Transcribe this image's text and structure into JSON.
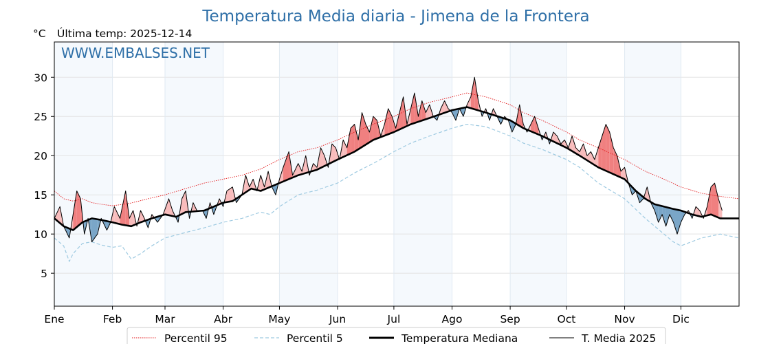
{
  "chart_data": {
    "type": "line",
    "title": "Temperatura Media diaria - Jimena de la Frontera",
    "unit_label": "°C",
    "subtitle": "Última temp: 2025-12-14",
    "watermark": "WWW.EMBALSES.NET",
    "ylim": [
      0.8,
      34.5
    ],
    "yticks": [
      5,
      10,
      15,
      20,
      25,
      30
    ],
    "xlim": [
      0,
      365
    ],
    "grid": true,
    "legend_position": "bottom",
    "months": [
      {
        "label": "Ene",
        "start": 0
      },
      {
        "label": "Feb",
        "start": 31
      },
      {
        "label": "Mar",
        "start": 59
      },
      {
        "label": "Abr",
        "start": 90
      },
      {
        "label": "May",
        "start": 120
      },
      {
        "label": "Jun",
        "start": 151
      },
      {
        "label": "Jul",
        "start": 181
      },
      {
        "label": "Ago",
        "start": 212
      },
      {
        "label": "Sep",
        "start": 243
      },
      {
        "label": "Oct",
        "start": 273
      },
      {
        "label": "Nov",
        "start": 304
      },
      {
        "label": "Dic",
        "start": 334
      }
    ],
    "shaded_months": [
      "Ene",
      "Mar",
      "May",
      "Jul",
      "Sep",
      "Nov"
    ],
    "series": [
      {
        "name": "Percentil 95",
        "color": "#e31a1c",
        "style": "dotted",
        "points": [
          [
            0,
            15.5
          ],
          [
            5,
            14.5
          ],
          [
            10,
            14.2
          ],
          [
            15,
            14.5
          ],
          [
            20,
            14.0
          ],
          [
            25,
            13.8
          ],
          [
            31,
            13.6
          ],
          [
            40,
            13.9
          ],
          [
            50,
            14.5
          ],
          [
            59,
            15.0
          ],
          [
            70,
            15.8
          ],
          [
            80,
            16.5
          ],
          [
            90,
            17.0
          ],
          [
            100,
            17.5
          ],
          [
            110,
            18.3
          ],
          [
            120,
            19.5
          ],
          [
            130,
            20.5
          ],
          [
            140,
            21.0
          ],
          [
            151,
            22.0
          ],
          [
            160,
            23.0
          ],
          [
            170,
            24.0
          ],
          [
            181,
            25.0
          ],
          [
            190,
            26.0
          ],
          [
            200,
            26.8
          ],
          [
            212,
            27.5
          ],
          [
            220,
            28.0
          ],
          [
            230,
            27.5
          ],
          [
            243,
            26.5
          ],
          [
            250,
            25.5
          ],
          [
            260,
            24.5
          ],
          [
            273,
            23.0
          ],
          [
            280,
            22.0
          ],
          [
            290,
            21.0
          ],
          [
            304,
            19.5
          ],
          [
            315,
            18.0
          ],
          [
            325,
            17.0
          ],
          [
            334,
            16.0
          ],
          [
            345,
            15.2
          ],
          [
            355,
            14.8
          ],
          [
            365,
            14.5
          ]
        ]
      },
      {
        "name": "Percentil 5",
        "color": "#9ecae1",
        "style": "dashed",
        "points": [
          [
            0,
            9.5
          ],
          [
            5,
            8.5
          ],
          [
            8,
            6.5
          ],
          [
            10,
            7.5
          ],
          [
            15,
            8.8
          ],
          [
            20,
            9.0
          ],
          [
            25,
            8.6
          ],
          [
            31,
            8.3
          ],
          [
            36,
            8.5
          ],
          [
            41,
            6.8
          ],
          [
            46,
            7.5
          ],
          [
            52,
            8.5
          ],
          [
            59,
            9.5
          ],
          [
            70,
            10.2
          ],
          [
            80,
            10.8
          ],
          [
            90,
            11.5
          ],
          [
            100,
            12.0
          ],
          [
            110,
            12.8
          ],
          [
            115,
            12.5
          ],
          [
            120,
            13.5
          ],
          [
            130,
            15.0
          ],
          [
            140,
            15.6
          ],
          [
            151,
            16.5
          ],
          [
            160,
            17.8
          ],
          [
            170,
            19.0
          ],
          [
            181,
            20.5
          ],
          [
            190,
            21.6
          ],
          [
            200,
            22.5
          ],
          [
            212,
            23.5
          ],
          [
            220,
            24.0
          ],
          [
            230,
            23.7
          ],
          [
            243,
            22.5
          ],
          [
            250,
            21.6
          ],
          [
            260,
            20.8
          ],
          [
            273,
            19.5
          ],
          [
            280,
            18.5
          ],
          [
            290,
            16.5
          ],
          [
            304,
            14.5
          ],
          [
            315,
            12.0
          ],
          [
            320,
            11.0
          ],
          [
            325,
            10.0
          ],
          [
            330,
            9.0
          ],
          [
            334,
            8.5
          ],
          [
            345,
            9.5
          ],
          [
            355,
            10.0
          ],
          [
            365,
            9.5
          ]
        ]
      },
      {
        "name": "Temperatura Mediana",
        "color": "#000000",
        "style": "thick",
        "points": [
          [
            0,
            12.0
          ],
          [
            5,
            11.0
          ],
          [
            10,
            10.5
          ],
          [
            15,
            11.5
          ],
          [
            20,
            12.0
          ],
          [
            25,
            11.8
          ],
          [
            31,
            11.5
          ],
          [
            36,
            11.2
          ],
          [
            41,
            11.0
          ],
          [
            46,
            11.5
          ],
          [
            52,
            12.0
          ],
          [
            59,
            12.5
          ],
          [
            65,
            12.2
          ],
          [
            70,
            12.8
          ],
          [
            80,
            13.0
          ],
          [
            90,
            14.0
          ],
          [
            95,
            14.2
          ],
          [
            100,
            15.0
          ],
          [
            105,
            15.8
          ],
          [
            110,
            15.5
          ],
          [
            115,
            16.0
          ],
          [
            120,
            16.5
          ],
          [
            130,
            17.5
          ],
          [
            140,
            18.2
          ],
          [
            151,
            19.5
          ],
          [
            160,
            20.5
          ],
          [
            170,
            22.0
          ],
          [
            181,
            23.0
          ],
          [
            190,
            24.0
          ],
          [
            200,
            24.8
          ],
          [
            212,
            25.8
          ],
          [
            220,
            26.2
          ],
          [
            230,
            25.5
          ],
          [
            243,
            24.5
          ],
          [
            250,
            23.5
          ],
          [
            260,
            22.5
          ],
          [
            273,
            21.0
          ],
          [
            280,
            20.0
          ],
          [
            290,
            18.5
          ],
          [
            304,
            17.0
          ],
          [
            310,
            15.5
          ],
          [
            315,
            14.5
          ],
          [
            320,
            13.8
          ],
          [
            325,
            13.5
          ],
          [
            330,
            13.2
          ],
          [
            334,
            13.0
          ],
          [
            340,
            12.5
          ],
          [
            345,
            12.2
          ],
          [
            350,
            12.5
          ],
          [
            355,
            12.0
          ],
          [
            365,
            12.0
          ]
        ]
      },
      {
        "name": "T. Media 2025",
        "color": "#000000",
        "style": "solid",
        "points": [
          [
            0,
            12.0
          ],
          [
            3,
            13.5
          ],
          [
            5,
            11.0
          ],
          [
            8,
            9.5
          ],
          [
            10,
            12.5
          ],
          [
            12,
            15.5
          ],
          [
            14,
            14.5
          ],
          [
            16,
            10.0
          ],
          [
            18,
            12.0
          ],
          [
            20,
            9.0
          ],
          [
            23,
            10.0
          ],
          [
            25,
            12.0
          ],
          [
            28,
            10.5
          ],
          [
            30,
            11.5
          ],
          [
            32,
            13.5
          ],
          [
            35,
            12.0
          ],
          [
            38,
            15.5
          ],
          [
            40,
            12.0
          ],
          [
            42,
            13.0
          ],
          [
            44,
            11.0
          ],
          [
            46,
            13.0
          ],
          [
            48,
            12.0
          ],
          [
            50,
            10.8
          ],
          [
            52,
            12.5
          ],
          [
            55,
            11.5
          ],
          [
            58,
            12.5
          ],
          [
            61,
            14.5
          ],
          [
            63,
            13.0
          ],
          [
            66,
            11.5
          ],
          [
            68,
            14.5
          ],
          [
            70,
            15.5
          ],
          [
            72,
            12.0
          ],
          [
            74,
            14.0
          ],
          [
            76,
            13.0
          ],
          [
            79,
            13.0
          ],
          [
            81,
            12.0
          ],
          [
            83,
            14.0
          ],
          [
            85,
            12.5
          ],
          [
            88,
            14.5
          ],
          [
            90,
            13.5
          ],
          [
            92,
            15.5
          ],
          [
            95,
            16.0
          ],
          [
            97,
            14.0
          ],
          [
            100,
            15.0
          ],
          [
            102,
            17.5
          ],
          [
            104,
            16.0
          ],
          [
            106,
            17.0
          ],
          [
            108,
            15.5
          ],
          [
            110,
            17.5
          ],
          [
            112,
            16.0
          ],
          [
            114,
            18.0
          ],
          [
            116,
            16.0
          ],
          [
            118,
            15.0
          ],
          [
            120,
            17.0
          ],
          [
            122,
            18.5
          ],
          [
            125,
            20.5
          ],
          [
            127,
            17.5
          ],
          [
            130,
            19.0
          ],
          [
            132,
            18.0
          ],
          [
            134,
            20.0
          ],
          [
            136,
            17.5
          ],
          [
            138,
            19.0
          ],
          [
            140,
            18.5
          ],
          [
            142,
            21.0
          ],
          [
            144,
            20.0
          ],
          [
            146,
            18.5
          ],
          [
            148,
            21.5
          ],
          [
            150,
            21.0
          ],
          [
            152,
            19.5
          ],
          [
            154,
            22.0
          ],
          [
            156,
            21.0
          ],
          [
            158,
            23.5
          ],
          [
            160,
            24.0
          ],
          [
            162,
            22.0
          ],
          [
            164,
            25.5
          ],
          [
            166,
            24.0
          ],
          [
            168,
            23.0
          ],
          [
            170,
            25.0
          ],
          [
            172,
            24.5
          ],
          [
            174,
            22.5
          ],
          [
            176,
            24.0
          ],
          [
            178,
            26.0
          ],
          [
            180,
            25.0
          ],
          [
            182,
            23.5
          ],
          [
            184,
            25.5
          ],
          [
            186,
            27.5
          ],
          [
            188,
            24.0
          ],
          [
            190,
            26.0
          ],
          [
            192,
            28.0
          ],
          [
            194,
            25.0
          ],
          [
            196,
            27.0
          ],
          [
            198,
            25.5
          ],
          [
            200,
            26.5
          ],
          [
            202,
            25.0
          ],
          [
            204,
            24.5
          ],
          [
            206,
            26.0
          ],
          [
            208,
            27.0
          ],
          [
            210,
            26.0
          ],
          [
            212,
            25.5
          ],
          [
            214,
            24.5
          ],
          [
            216,
            26.0
          ],
          [
            218,
            25.0
          ],
          [
            220,
            26.5
          ],
          [
            222,
            27.5
          ],
          [
            224,
            30.0
          ],
          [
            226,
            27.0
          ],
          [
            228,
            25.0
          ],
          [
            230,
            26.0
          ],
          [
            232,
            24.5
          ],
          [
            234,
            26.0
          ],
          [
            236,
            25.0
          ],
          [
            238,
            24.0
          ],
          [
            240,
            25.0
          ],
          [
            242,
            24.5
          ],
          [
            244,
            23.0
          ],
          [
            246,
            24.0
          ],
          [
            248,
            26.5
          ],
          [
            250,
            24.0
          ],
          [
            252,
            23.0
          ],
          [
            254,
            24.0
          ],
          [
            256,
            25.0
          ],
          [
            258,
            23.5
          ],
          [
            260,
            22.0
          ],
          [
            262,
            23.0
          ],
          [
            264,
            21.5
          ],
          [
            266,
            23.0
          ],
          [
            268,
            22.5
          ],
          [
            270,
            21.5
          ],
          [
            272,
            22.0
          ],
          [
            274,
            21.0
          ],
          [
            276,
            22.5
          ],
          [
            278,
            21.0
          ],
          [
            280,
            20.5
          ],
          [
            282,
            21.5
          ],
          [
            284,
            20.0
          ],
          [
            286,
            20.5
          ],
          [
            288,
            19.5
          ],
          [
            290,
            21.0
          ],
          [
            292,
            22.5
          ],
          [
            294,
            24.0
          ],
          [
            296,
            23.0
          ],
          [
            298,
            21.0
          ],
          [
            300,
            20.0
          ],
          [
            302,
            18.0
          ],
          [
            304,
            18.5
          ],
          [
            306,
            16.5
          ],
          [
            308,
            15.0
          ],
          [
            310,
            15.5
          ],
          [
            312,
            14.0
          ],
          [
            314,
            14.5
          ],
          [
            316,
            16.0
          ],
          [
            318,
            14.0
          ],
          [
            320,
            13.0
          ],
          [
            322,
            11.5
          ],
          [
            324,
            12.5
          ],
          [
            326,
            11.0
          ],
          [
            328,
            12.5
          ],
          [
            330,
            11.5
          ],
          [
            332,
            10.0
          ],
          [
            334,
            11.5
          ],
          [
            336,
            12.5
          ],
          [
            338,
            13.0
          ],
          [
            340,
            12.0
          ],
          [
            342,
            13.5
          ],
          [
            344,
            13.0
          ],
          [
            346,
            12.0
          ],
          [
            348,
            13.5
          ],
          [
            350,
            16.0
          ],
          [
            352,
            16.5
          ],
          [
            354,
            14.5
          ],
          [
            356,
            13.0
          ]
        ]
      }
    ]
  }
}
